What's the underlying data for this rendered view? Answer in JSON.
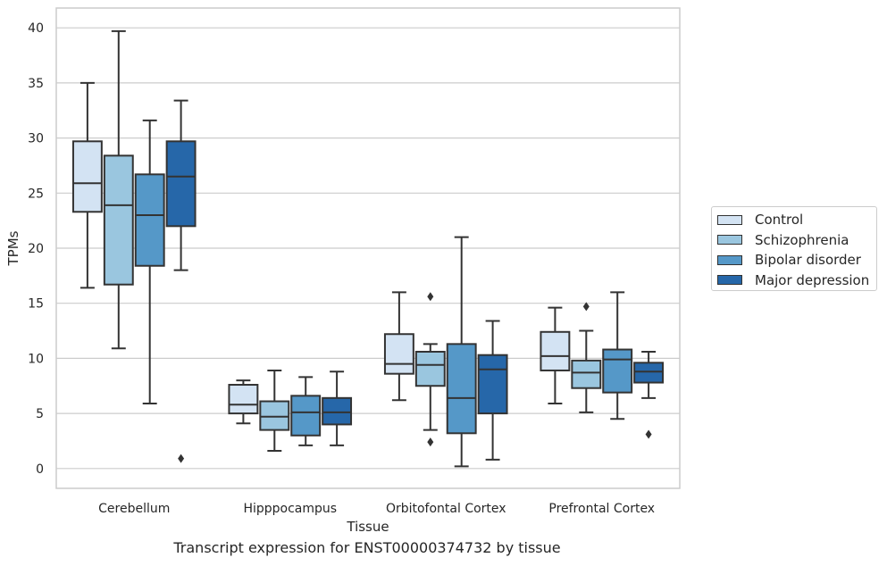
{
  "chart_data": {
    "type": "box",
    "title": "",
    "caption": "Transcript expression for ENST00000374732 by tissue",
    "xlabel": "Tissue",
    "ylabel": "TPMs",
    "ylim": [
      -1.8,
      41.8
    ],
    "yticks": [
      0,
      5,
      10,
      15,
      20,
      25,
      30,
      35,
      40
    ],
    "grid": true,
    "legend_position": "right",
    "categories": [
      "Cerebellum",
      "Hipppocampus",
      "Orbitofontal Cortex",
      "Prefrontal Cortex"
    ],
    "series": [
      {
        "name": "Control",
        "color": "#d3e3f3",
        "boxes": [
          {
            "whisker_low": 16.4,
            "q1": 23.3,
            "median": 25.9,
            "q3": 29.7,
            "whisker_high": 35.0,
            "outliers": []
          },
          {
            "whisker_low": 4.1,
            "q1": 5.0,
            "median": 5.8,
            "q3": 7.6,
            "whisker_high": 8.0,
            "outliers": []
          },
          {
            "whisker_low": 6.2,
            "q1": 8.6,
            "median": 9.5,
            "q3": 12.2,
            "whisker_high": 16.0,
            "outliers": []
          },
          {
            "whisker_low": 5.9,
            "q1": 8.9,
            "median": 10.2,
            "q3": 12.4,
            "whisker_high": 14.6,
            "outliers": []
          }
        ]
      },
      {
        "name": "Schizophrenia",
        "color": "#9ac6df",
        "boxes": [
          {
            "whisker_low": 10.9,
            "q1": 16.7,
            "median": 23.9,
            "q3": 28.4,
            "whisker_high": 39.7,
            "outliers": []
          },
          {
            "whisker_low": 1.6,
            "q1": 3.5,
            "median": 4.7,
            "q3": 6.1,
            "whisker_high": 8.9,
            "outliers": []
          },
          {
            "whisker_low": 3.5,
            "q1": 7.5,
            "median": 9.4,
            "q3": 10.6,
            "whisker_high": 11.3,
            "outliers": [
              2.4,
              15.6
            ]
          },
          {
            "whisker_low": 5.1,
            "q1": 7.3,
            "median": 8.7,
            "q3": 9.8,
            "whisker_high": 12.5,
            "outliers": [
              14.7
            ]
          }
        ]
      },
      {
        "name": "Bipolar disorder",
        "color": "#5598c8",
        "boxes": [
          {
            "whisker_low": 5.9,
            "q1": 18.4,
            "median": 23.0,
            "q3": 26.7,
            "whisker_high": 31.6,
            "outliers": []
          },
          {
            "whisker_low": 2.1,
            "q1": 3.0,
            "median": 5.1,
            "q3": 6.6,
            "whisker_high": 8.3,
            "outliers": []
          },
          {
            "whisker_low": 0.2,
            "q1": 3.2,
            "median": 6.4,
            "q3": 11.3,
            "whisker_high": 21.0,
            "outliers": []
          },
          {
            "whisker_low": 4.5,
            "q1": 6.9,
            "median": 9.9,
            "q3": 10.8,
            "whisker_high": 16.0,
            "outliers": []
          }
        ]
      },
      {
        "name": "Major depression",
        "color": "#2667a9",
        "boxes": [
          {
            "whisker_low": 18.0,
            "q1": 22.0,
            "median": 26.5,
            "q3": 29.7,
            "whisker_high": 33.4,
            "outliers": [
              0.9
            ]
          },
          {
            "whisker_low": 2.1,
            "q1": 4.0,
            "median": 5.1,
            "q3": 6.4,
            "whisker_high": 8.8,
            "outliers": []
          },
          {
            "whisker_low": 0.8,
            "q1": 5.0,
            "median": 9.0,
            "q3": 10.3,
            "whisker_high": 13.4,
            "outliers": []
          },
          {
            "whisker_low": 6.4,
            "q1": 7.8,
            "median": 8.8,
            "q3": 9.6,
            "whisker_high": 10.6,
            "outliers": [
              3.1
            ]
          }
        ]
      }
    ]
  }
}
